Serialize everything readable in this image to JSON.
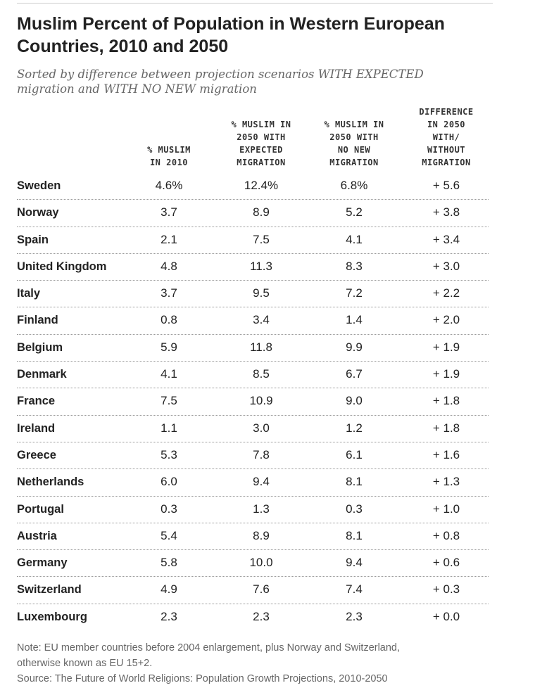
{
  "chart_data": {
    "type": "table",
    "title": "Muslim Percent of Population in Western European Countries, 2010 and 2050",
    "subtitle_lines": [
      "Sorted by difference between projection scenarios WITH EXPECTED",
      "migration and WITH NO NEW migration"
    ],
    "columns": [
      {
        "lines": [
          "% MUSLIM",
          "IN 2010"
        ]
      },
      {
        "lines": [
          "% MUSLIM IN",
          "2050 WITH",
          "EXPECTED",
          "MIGRATION"
        ]
      },
      {
        "lines": [
          "% MUSLIM IN",
          "2050 WITH",
          "NO NEW",
          "MIGRATION"
        ]
      },
      {
        "lines": [
          "DIFFERENCE",
          "IN 2050",
          "WITH/",
          "WITHOUT",
          "MIGRATION"
        ]
      }
    ],
    "rows": [
      {
        "country": "Sweden",
        "values": [
          "4.6%",
          "12.4%",
          "6.8%",
          "+ 5.6"
        ]
      },
      {
        "country": "Norway",
        "values": [
          "3.7",
          "8.9",
          "5.2",
          "+ 3.8"
        ]
      },
      {
        "country": "Spain",
        "values": [
          "2.1",
          "7.5",
          "4.1",
          "+ 3.4"
        ]
      },
      {
        "country": "United Kingdom",
        "values": [
          "4.8",
          "11.3",
          "8.3",
          "+ 3.0"
        ]
      },
      {
        "country": "Italy",
        "values": [
          "3.7",
          "9.5",
          "7.2",
          "+ 2.2"
        ]
      },
      {
        "country": "Finland",
        "values": [
          "0.8",
          "3.4",
          "1.4",
          "+ 2.0"
        ]
      },
      {
        "country": "Belgium",
        "values": [
          "5.9",
          "11.8",
          "9.9",
          "+ 1.9"
        ]
      },
      {
        "country": "Denmark",
        "values": [
          "4.1",
          "8.5",
          "6.7",
          "+ 1.9"
        ]
      },
      {
        "country": "France",
        "values": [
          "7.5",
          "10.9",
          "9.0",
          "+ 1.8"
        ]
      },
      {
        "country": "Ireland",
        "values": [
          "1.1",
          "3.0",
          "1.2",
          "+ 1.8"
        ]
      },
      {
        "country": "Greece",
        "values": [
          "5.3",
          "7.8",
          "6.1",
          "+ 1.6"
        ]
      },
      {
        "country": "Netherlands",
        "values": [
          "6.0",
          "9.4",
          "8.1",
          "+ 1.3"
        ]
      },
      {
        "country": "Portugal",
        "values": [
          "0.3",
          "1.3",
          "0.3",
          "+ 1.0"
        ]
      },
      {
        "country": "Austria",
        "values": [
          "5.4",
          "8.9",
          "8.1",
          "+ 0.8"
        ]
      },
      {
        "country": "Germany",
        "values": [
          "5.8",
          "10.0",
          "9.4",
          "+ 0.6"
        ]
      },
      {
        "country": "Switzerland",
        "values": [
          "4.9",
          "7.6",
          "7.4",
          "+ 0.3"
        ]
      },
      {
        "country": "Luxembourg",
        "values": [
          "2.3",
          "2.3",
          "2.3",
          "+ 0.0"
        ]
      }
    ],
    "note_lines": [
      "Note: EU member countries before 2004 enlargement, plus Norway and Switzerland,",
      "otherwise known as EU 15+2.",
      "Source: The Future of World Religions: Population Growth Projections, 2010-2050"
    ]
  }
}
